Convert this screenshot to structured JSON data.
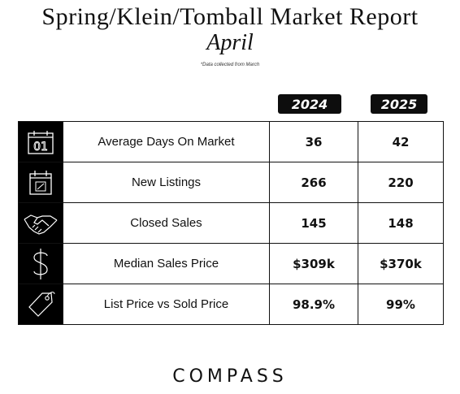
{
  "header": {
    "title": "Spring/Klein/Tomball Market Report",
    "subtitle": "April",
    "note": "*Data collected from March"
  },
  "columns": [
    "2024",
    "2025"
  ],
  "rows": [
    {
      "icon": "calendar-01-icon",
      "label": "Average Days On Market",
      "v2024": "36",
      "v2025": "42"
    },
    {
      "icon": "calendar-check-icon",
      "label": "New Listings",
      "v2024": "266",
      "v2025": "220"
    },
    {
      "icon": "handshake-icon",
      "label": "Closed Sales",
      "v2024": "145",
      "v2025": "148"
    },
    {
      "icon": "dollar-icon",
      "label": "Median Sales Price",
      "v2024": "$309k",
      "v2025": "$370k"
    },
    {
      "icon": "price-tag-icon",
      "label": "List Price vs Sold Price",
      "v2024": "98.9%",
      "v2025": "99%"
    }
  ],
  "calendar_icon_text": "01",
  "footer": {
    "brand": "COMPASS"
  }
}
